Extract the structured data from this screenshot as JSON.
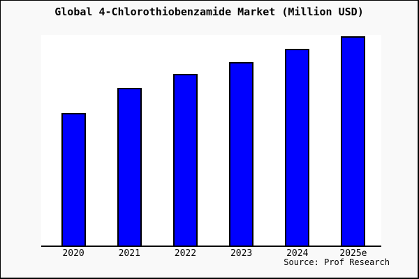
{
  "window": {
    "title": "Global 4-Chlorothiobenzamide Market (Million USD)"
  },
  "chart_data": {
    "type": "bar",
    "title": "Global 4-Chlorothiobenzamide Market (Million USD)",
    "categories": [
      "2020",
      "2021",
      "2022",
      "2023",
      "2024",
      "2025e"
    ],
    "series": [
      {
        "name": "market-size",
        "values_relative_pct": [
          62.8,
          75.0,
          81.3,
          87.2,
          93.4,
          99.3
        ]
      }
    ],
    "value_labels_shown": false,
    "y_axis_ticks": [],
    "xlabel": "",
    "ylabel": "",
    "grid": false,
    "legend": false,
    "colors": {
      "bar_fill": "#0000ff",
      "bar_border": "#000000",
      "plot_background": "#ffffff",
      "page_background": "#f9f9f9",
      "axis_line": "#000000",
      "text": "#000000"
    }
  },
  "footer": {
    "source_note": "Source: Prof Research"
  }
}
